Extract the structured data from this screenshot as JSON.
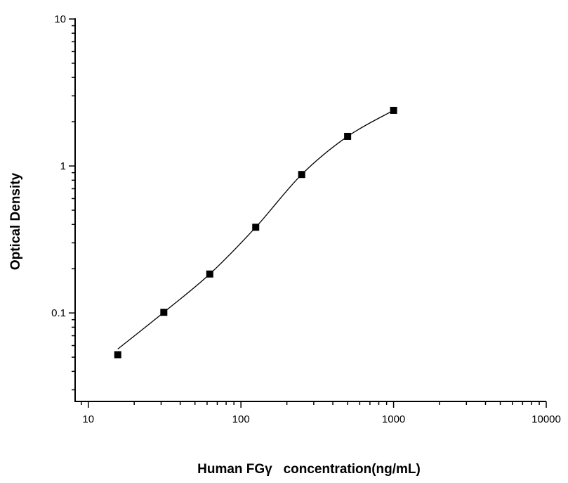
{
  "chart_data": {
    "type": "scatter",
    "title": "",
    "xlabel": "Human FGγ   concentration(ng/mL)",
    "ylabel": "Optical Density",
    "xscale": "log",
    "yscale": "log",
    "xlim": [
      8.2,
      10000
    ],
    "ylim": [
      0.025,
      10
    ],
    "xticks": [
      10,
      100,
      1000,
      10000
    ],
    "xtick_labels": [
      "10",
      "100",
      "1000",
      "10000"
    ],
    "yticks": [
      0.1,
      1,
      10
    ],
    "ytick_labels": [
      "0.1",
      "1",
      "10"
    ],
    "grid": false,
    "legend": "none",
    "series": [
      {
        "x": [
          15.6,
          31.25,
          62.5,
          125,
          250,
          500,
          1000
        ],
        "y": [
          0.052,
          0.101,
          0.184,
          0.383,
          0.875,
          1.59,
          2.39
        ],
        "marker": "square",
        "fit_line": true,
        "color": "#000000"
      }
    ]
  }
}
